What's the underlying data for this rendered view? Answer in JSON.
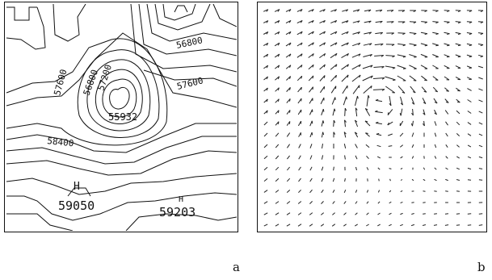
{
  "panel_a": {
    "contour_labels": [
      "56800",
      "57600",
      "57600",
      "56800",
      "57200",
      "55932",
      "58400"
    ],
    "high_labels": [
      "H",
      "H"
    ],
    "high_values": [
      "59050",
      "59203"
    ],
    "caption": "a"
  },
  "panel_b": {
    "caption": "b"
  }
}
